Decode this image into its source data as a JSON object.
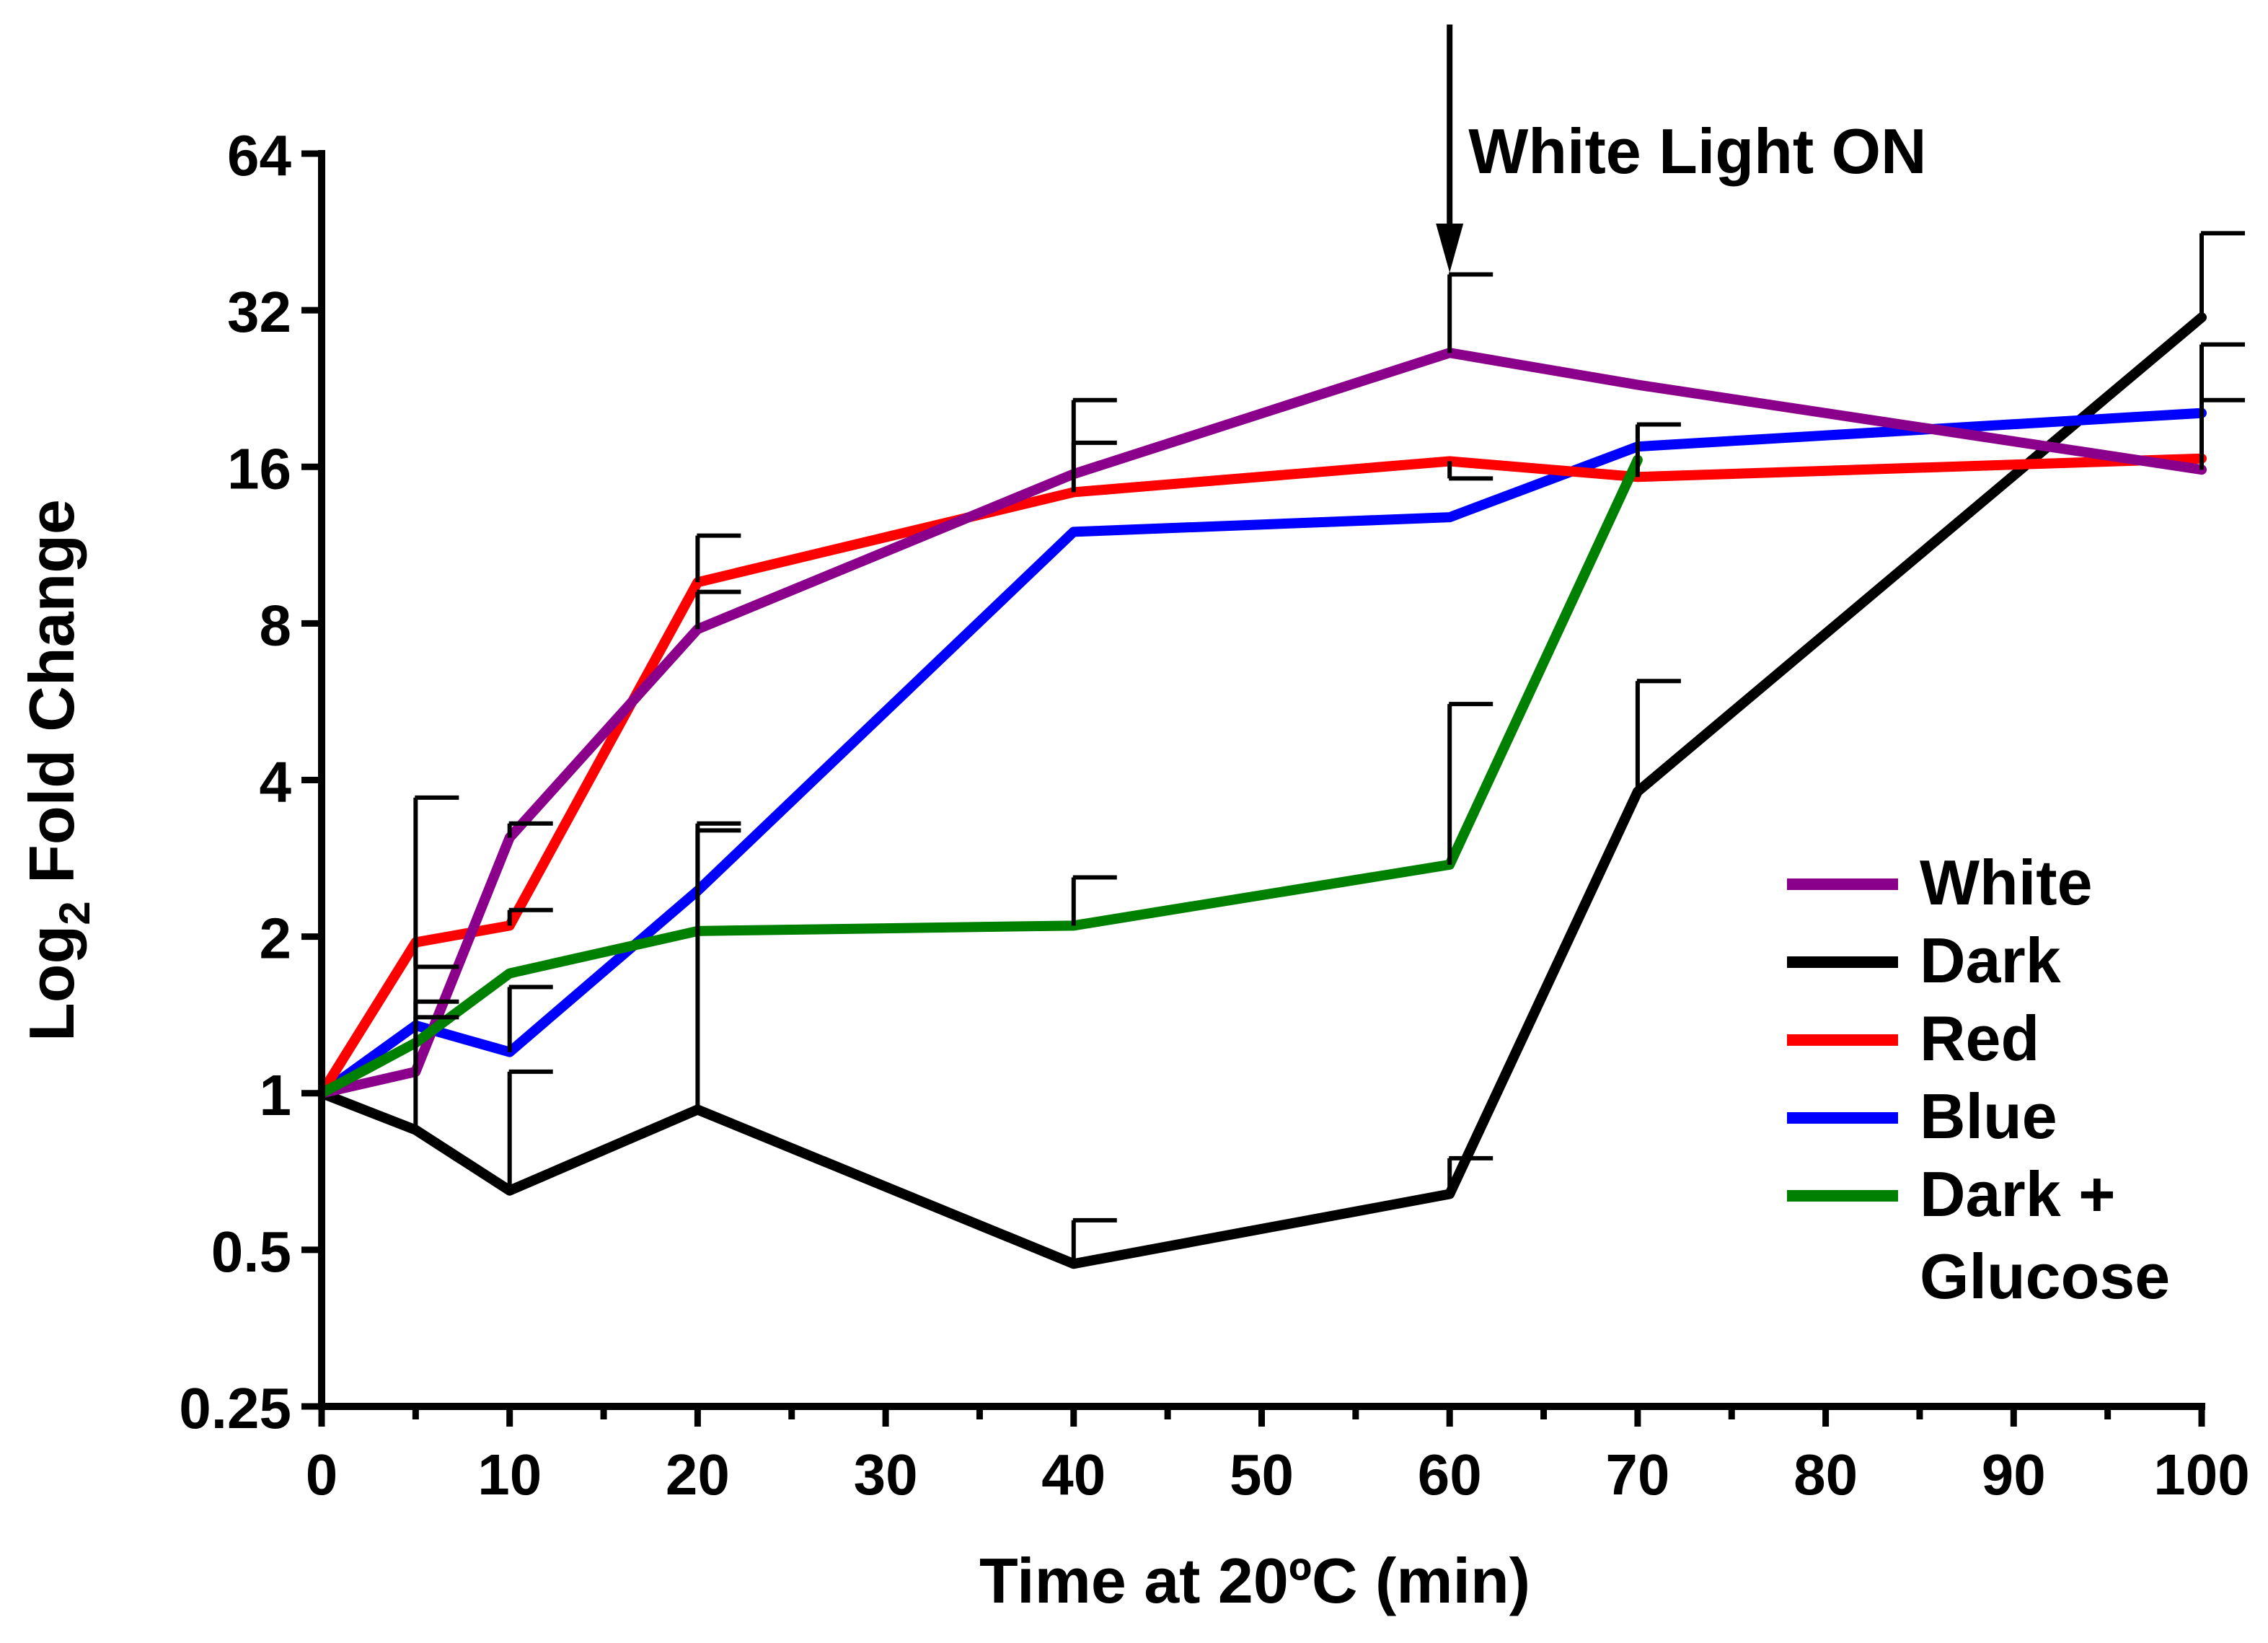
{
  "chart_data": {
    "type": "line",
    "title": "",
    "xlabel": "Time at 20ºC (min)",
    "ylabel_main": "Log",
    "ylabel_sub": "2",
    "ylabel_rest": " Fold Change",
    "yscale": "log2",
    "xlim": [
      0,
      100
    ],
    "ylim": [
      0.25,
      64
    ],
    "x_ticks": [
      0,
      10,
      20,
      30,
      40,
      50,
      60,
      70,
      80,
      90,
      100
    ],
    "x_tick_labels": [
      "0",
      "10",
      "20",
      "30",
      "40",
      "50",
      "60",
      "70",
      "80",
      "90",
      "100"
    ],
    "x_minor_ticks": [
      5,
      15,
      25,
      35,
      45,
      55,
      65,
      75,
      85,
      95
    ],
    "y_ticks": [
      0.25,
      0.5,
      1,
      2,
      4,
      8,
      16,
      32,
      64
    ],
    "y_tick_labels": [
      "0.25",
      "0.5",
      "1",
      "2",
      "4",
      "8",
      "16",
      "32",
      "64"
    ],
    "annotation": {
      "text": "White Light ON",
      "x": 60
    },
    "legend_position": "bottom-right",
    "series": [
      {
        "name": "White",
        "color": "#8B008B",
        "x": [
          0,
          5,
          10,
          20,
          40,
          60,
          70,
          100
        ],
        "values": [
          1,
          1.1,
          3.1,
          7.8,
          15.5,
          26.5,
          23,
          15.8
        ],
        "err_x": [
          5,
          10,
          20,
          40,
          60,
          100
        ],
        "err_upper": [
          1.5,
          3.3,
          9.2,
          21.5,
          37.5,
          27.5
        ]
      },
      {
        "name": "Dark",
        "color": "#000000",
        "x": [
          0,
          5,
          10,
          20,
          40,
          60,
          70,
          100
        ],
        "values": [
          1,
          0.85,
          0.65,
          0.93,
          0.47,
          0.64,
          3.8,
          31
        ],
        "err_x": [
          5,
          10,
          20,
          40,
          60,
          70,
          100
        ],
        "err_upper": [
          3.7,
          1.1,
          3.3,
          0.57,
          0.75,
          6.2,
          45
        ]
      },
      {
        "name": "Red",
        "color": "#FF0000",
        "x": [
          0,
          5,
          10,
          20,
          40,
          60,
          70,
          100
        ],
        "values": [
          1,
          1.95,
          2.1,
          9.6,
          14.3,
          16.4,
          15.3,
          16.6
        ],
        "err_x": [
          5,
          10,
          20,
          40,
          60,
          70,
          100
        ],
        "err_upper": [
          1.75,
          2.25,
          11.8,
          17.8,
          15.2,
          19.3,
          21.5
        ]
      },
      {
        "name": "Blue",
        "color": "#0000FF",
        "x": [
          0,
          5,
          10,
          20,
          40,
          60,
          70,
          100
        ],
        "values": [
          1,
          1.35,
          1.2,
          2.45,
          12,
          12.8,
          17.5,
          20.3
        ],
        "err_x": [
          5,
          10
        ],
        "err_upper": [
          1.4,
          1.6
        ]
      },
      {
        "name": "Dark + Glucose",
        "legend_line1": "Dark +",
        "legend_line2": "Glucose",
        "color": "#008000",
        "x": [
          0,
          5,
          10,
          20,
          40,
          60,
          70
        ],
        "values": [
          1,
          1.25,
          1.7,
          2.05,
          2.1,
          2.75,
          16.5
        ],
        "err_x": [
          20,
          40,
          60
        ],
        "err_upper": [
          3.2,
          2.6,
          5.6
        ]
      }
    ]
  }
}
